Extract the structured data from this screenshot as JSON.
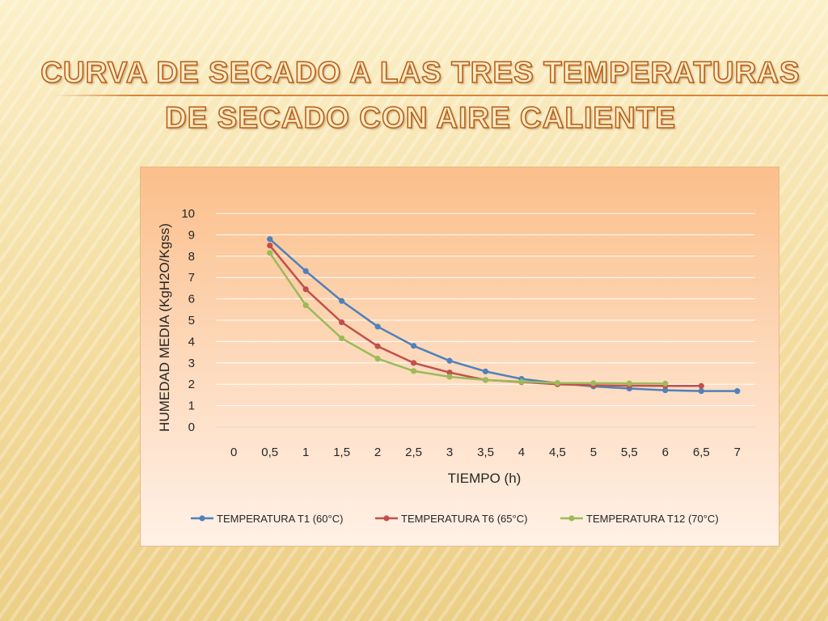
{
  "slide": {
    "title_line1": "CURVA DE SECADO A LAS TRES TEMPERATURAS",
    "title_line2": "DE SECADO CON AIRE CALIENTE"
  },
  "chart_data": {
    "type": "line",
    "title": "",
    "xlabel": "TIEMPO (h)",
    "ylabel": "HUMEDAD MEDIA (KgH2O/Kgss)",
    "categories": [
      "0",
      "0,5",
      "1",
      "1,5",
      "2",
      "2,5",
      "3",
      "3,5",
      "4",
      "4,5",
      "5",
      "5,5",
      "6",
      "6,5",
      "7"
    ],
    "y_ticks": [
      "0",
      "1",
      "2",
      "3",
      "4",
      "5",
      "6",
      "7",
      "8",
      "9",
      "10"
    ],
    "ylim": [
      0,
      10
    ],
    "grid": true,
    "legend_position": "bottom",
    "series": [
      {
        "name": "TEMPERATURA T1 (60°C)",
        "color": "#4f81bd",
        "values": [
          null,
          8.8,
          7.3,
          5.9,
          4.7,
          3.8,
          3.1,
          2.6,
          2.25,
          2.05,
          1.9,
          1.8,
          1.72,
          1.68,
          1.68
        ]
      },
      {
        "name": "TEMPERATURA T6 (65°C)",
        "color": "#c0504d",
        "values": [
          null,
          8.5,
          6.45,
          4.9,
          3.78,
          3.0,
          2.55,
          2.2,
          2.1,
          2.0,
          1.95,
          1.93,
          1.92,
          1.92,
          null
        ]
      },
      {
        "name": "TEMPERATURA T12 (70°C)",
        "color": "#9bbb59",
        "values": [
          null,
          8.15,
          5.7,
          4.15,
          3.2,
          2.62,
          2.35,
          2.2,
          2.12,
          2.06,
          2.05,
          2.04,
          2.03,
          null,
          null
        ]
      }
    ]
  }
}
